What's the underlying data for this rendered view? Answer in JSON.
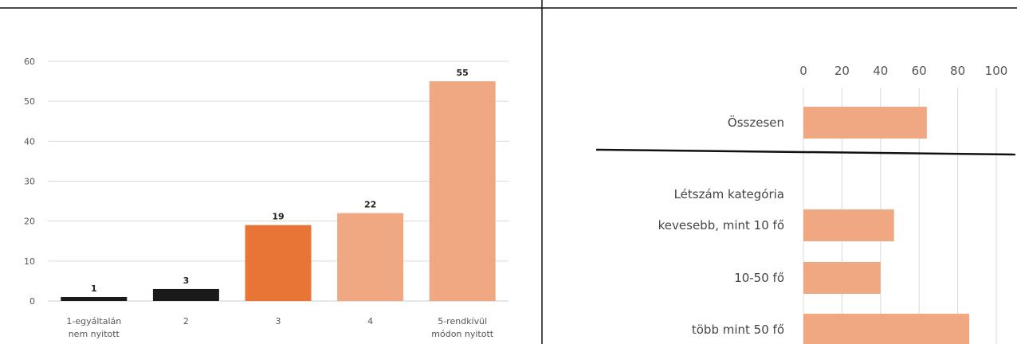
{
  "chart_data": [
    {
      "type": "bar",
      "categories": [
        [
          "1-egyáltalán",
          "nem nyitott"
        ],
        [
          "2"
        ],
        [
          "3"
        ],
        [
          "4"
        ],
        [
          "5-rendkívül",
          "módon nyitott"
        ]
      ],
      "values": [
        1,
        3,
        19,
        22,
        55
      ],
      "colors": [
        "#1a1a1a",
        "#1a1a1a",
        "#e87435",
        "#f0a882",
        "#f0a882"
      ],
      "ylim": [
        0,
        60
      ],
      "yticks": [
        0,
        10,
        20,
        30,
        40,
        50,
        60
      ],
      "grid": true,
      "data_labels": true
    },
    {
      "type": "bar",
      "orientation": "horizontal",
      "xlim": [
        0,
        100
      ],
      "xticks": [
        0,
        20,
        40,
        60,
        80,
        100
      ],
      "grid": true,
      "color": "#f0a882",
      "rows": [
        {
          "label": "Összesen",
          "value": 64
        },
        {
          "label": "Létszám kategória",
          "value": null
        },
        {
          "label": "kevesebb, mint 10 fő",
          "value": 47
        },
        {
          "label": "10-50 fő",
          "value": 40
        },
        {
          "label": "több mint 50 fő",
          "value": 86
        }
      ]
    }
  ]
}
